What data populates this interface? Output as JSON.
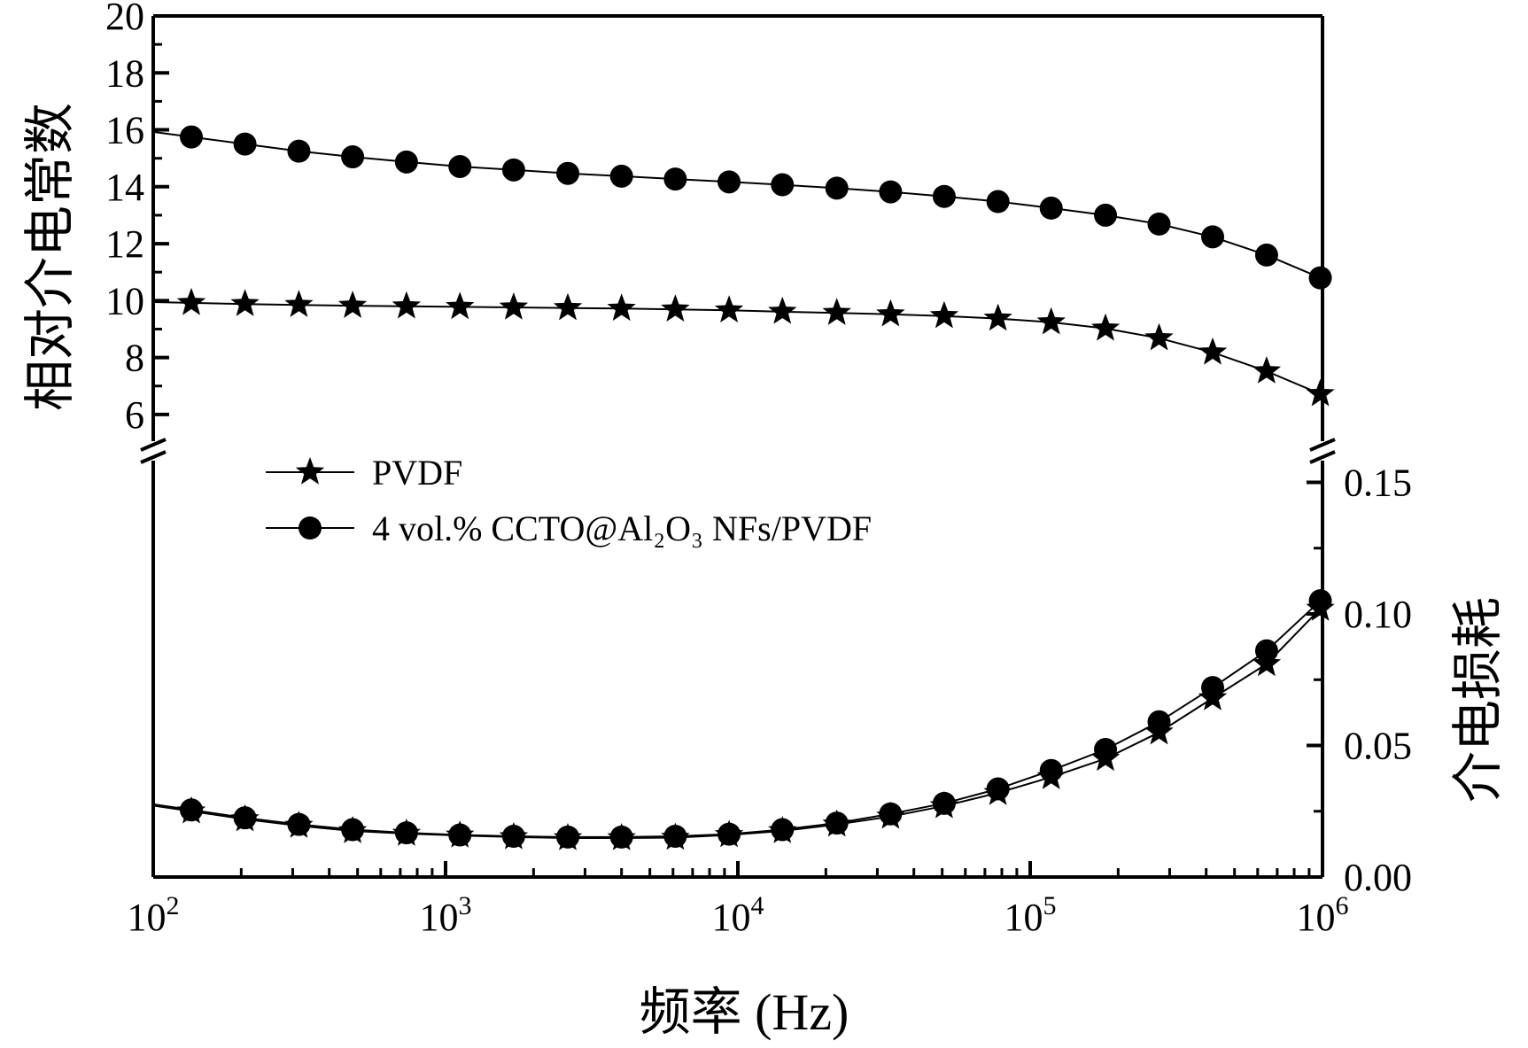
{
  "chart_data": {
    "type": "line",
    "x_scale": "log",
    "x_range": [
      100,
      1000000
    ],
    "x_ticks": [
      "10^2",
      "10^3",
      "10^4",
      "10^5",
      "10^6"
    ],
    "xlabel": "频率 (Hz)",
    "left_axis": {
      "label": "相对介电常数",
      "range": [
        5,
        20
      ],
      "ticks": [
        "6",
        "8",
        "10",
        "12",
        "14",
        "16",
        "18",
        "20"
      ]
    },
    "right_axis": {
      "label": "介电损耗",
      "range": [
        0,
        0.165
      ],
      "ticks": [
        "0.00",
        "0.05",
        "0.10",
        "0.15"
      ]
    },
    "axis_break": true,
    "legend_position": "center-left",
    "series": [
      {
        "name": "PVDF",
        "marker": "star",
        "axis": "left",
        "x": [
          135,
          206,
          315,
          481,
          735,
          1120,
          1710,
          2620,
          4000,
          6110,
          9330,
          14200,
          21800,
          33300,
          50800,
          77600,
          118000,
          181000,
          276000,
          421000,
          644000,
          983000
        ],
        "values": [
          9.92,
          9.88,
          9.85,
          9.82,
          9.8,
          9.78,
          9.76,
          9.74,
          9.72,
          9.69,
          9.66,
          9.61,
          9.57,
          9.52,
          9.46,
          9.37,
          9.24,
          9.02,
          8.68,
          8.18,
          7.52,
          6.72
        ]
      },
      {
        "name": "4 vol.% CCTO@Al₂O₃ NFs/PVDF",
        "marker": "circle",
        "axis": "left",
        "x": [
          135,
          206,
          315,
          481,
          735,
          1120,
          1710,
          2620,
          4000,
          6110,
          9330,
          14200,
          21800,
          33300,
          50800,
          77600,
          118000,
          181000,
          276000,
          421000,
          644000,
          983000
        ],
        "values": [
          15.75,
          15.5,
          15.25,
          15.05,
          14.87,
          14.71,
          14.59,
          14.47,
          14.37,
          14.27,
          14.17,
          14.07,
          13.95,
          13.82,
          13.66,
          13.48,
          13.25,
          13.0,
          12.69,
          12.24,
          11.6,
          10.8
        ]
      },
      {
        "name": "PVDF",
        "marker": "star",
        "axis": "right",
        "x": [
          135,
          206,
          315,
          481,
          735,
          1120,
          1710,
          2620,
          4000,
          6110,
          9330,
          14200,
          21800,
          33300,
          50800,
          77600,
          118000,
          181000,
          276000,
          421000,
          644000,
          983000
        ],
        "values": [
          0.025,
          0.022,
          0.0195,
          0.0175,
          0.0165,
          0.0158,
          0.0152,
          0.0148,
          0.0148,
          0.015,
          0.016,
          0.0175,
          0.02,
          0.023,
          0.027,
          0.032,
          0.038,
          0.045,
          0.055,
          0.068,
          0.081,
          0.102
        ]
      },
      {
        "name": "4 vol.% CCTO@Al₂O₃ NFs/PVDF",
        "marker": "circle",
        "axis": "right",
        "x": [
          135,
          206,
          315,
          481,
          735,
          1120,
          1710,
          2620,
          4000,
          6110,
          9330,
          14200,
          21800,
          33300,
          50800,
          77600,
          118000,
          181000,
          276000,
          421000,
          644000,
          983000
        ],
        "values": [
          0.0255,
          0.0225,
          0.02,
          0.018,
          0.0168,
          0.016,
          0.0155,
          0.0152,
          0.0152,
          0.0155,
          0.0163,
          0.018,
          0.0205,
          0.024,
          0.028,
          0.0335,
          0.0405,
          0.0485,
          0.059,
          0.072,
          0.086,
          0.105
        ]
      }
    ]
  }
}
